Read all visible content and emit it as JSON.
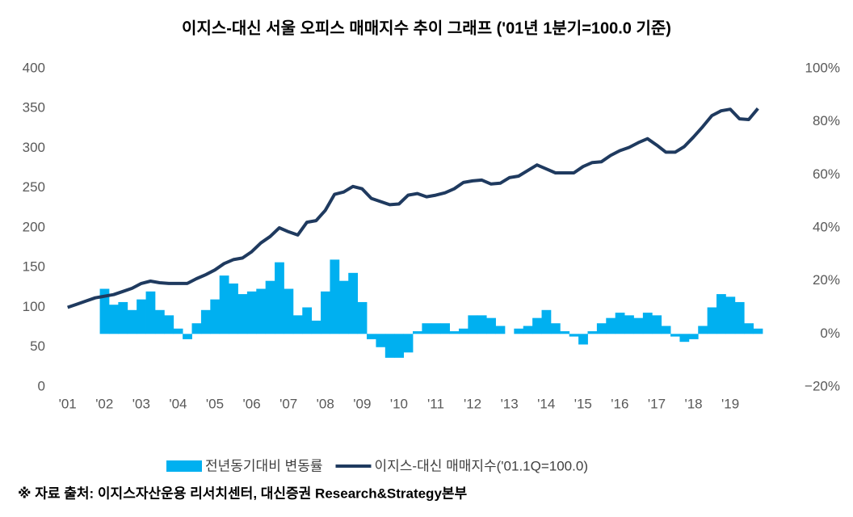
{
  "chart_data": {
    "type": "bar-line",
    "title": "이지스-대신 서울 오피스 매매지수 추이 그래프 ('01년 1분기=100.0 기준)",
    "note": "※ 자료 출처: 이지스자산운용 리서치센터, 대신증권 Research&Strategy본부",
    "categories": [
      "'01",
      null,
      null,
      null,
      "'02",
      null,
      null,
      null,
      "'03",
      null,
      null,
      null,
      "'04",
      null,
      null,
      null,
      "'05",
      null,
      null,
      null,
      "'06",
      null,
      null,
      null,
      "'07",
      null,
      null,
      null,
      "'08",
      null,
      null,
      null,
      "'09",
      null,
      null,
      null,
      "'10",
      null,
      null,
      null,
      "'11",
      null,
      null,
      null,
      "'12",
      null,
      null,
      null,
      "'13",
      null,
      null,
      null,
      "'14",
      null,
      null,
      null,
      "'15",
      null,
      null,
      null,
      "'16",
      null,
      null,
      null,
      "'17",
      null,
      null,
      null,
      "'18",
      null,
      null,
      null,
      "'19",
      null,
      null,
      null
    ],
    "series": [
      {
        "name": "전년동기대비 변동률",
        "type": "bar",
        "axis": "y2",
        "color": "#00b0f0",
        "values": [
          null,
          null,
          null,
          null,
          17,
          11,
          12,
          9,
          13,
          16,
          9,
          7,
          2,
          -2,
          4,
          9,
          13,
          22,
          19,
          15,
          16,
          17,
          20,
          27,
          17,
          7,
          10,
          5,
          16,
          28,
          20,
          23,
          12,
          -2,
          -5,
          -9,
          -9,
          -7,
          1,
          4,
          4,
          4,
          1,
          2,
          7,
          7,
          6,
          3,
          0,
          2,
          3,
          6,
          9,
          4,
          1,
          -1,
          -4,
          1,
          4,
          6,
          8,
          7,
          6,
          8,
          7,
          3,
          -1,
          -3,
          -2,
          3,
          10,
          15,
          14,
          12,
          4,
          2
        ]
      },
      {
        "name": "이지스-대신 매매지수('01.1Q=100.0)",
        "type": "line",
        "color": "#1f3a5f",
        "values": [
          100,
          104,
          108,
          112,
          114,
          116,
          120,
          124,
          130,
          133,
          131,
          130,
          130,
          130,
          136,
          141,
          147,
          155,
          160,
          162,
          170,
          181,
          189,
          200,
          195,
          191,
          207,
          209,
          222,
          242,
          245,
          252,
          249,
          237,
          233,
          229,
          230,
          241,
          243,
          239,
          241,
          244,
          249,
          257,
          259,
          260,
          255,
          256,
          263,
          265,
          272,
          279,
          274,
          269,
          269,
          269,
          277,
          282,
          283,
          291,
          297,
          301,
          307,
          312,
          304,
          295,
          295,
          302,
          314,
          327,
          341,
          347,
          349,
          337,
          336,
          350
        ]
      }
    ],
    "ylim": [
      0,
      400
    ],
    "yticks": [
      0,
      50,
      100,
      150,
      200,
      250,
      300,
      350,
      400
    ],
    "y2lim": [
      -20,
      100
    ],
    "y2ticks": [
      {
        "value": -20,
        "label": "−20%"
      },
      {
        "value": 0,
        "label": "0%"
      },
      {
        "value": 20,
        "label": "20%"
      },
      {
        "value": 40,
        "label": "40%"
      },
      {
        "value": 60,
        "label": "60%"
      },
      {
        "value": 80,
        "label": "80%"
      },
      {
        "value": 100,
        "label": "100%"
      }
    ]
  }
}
